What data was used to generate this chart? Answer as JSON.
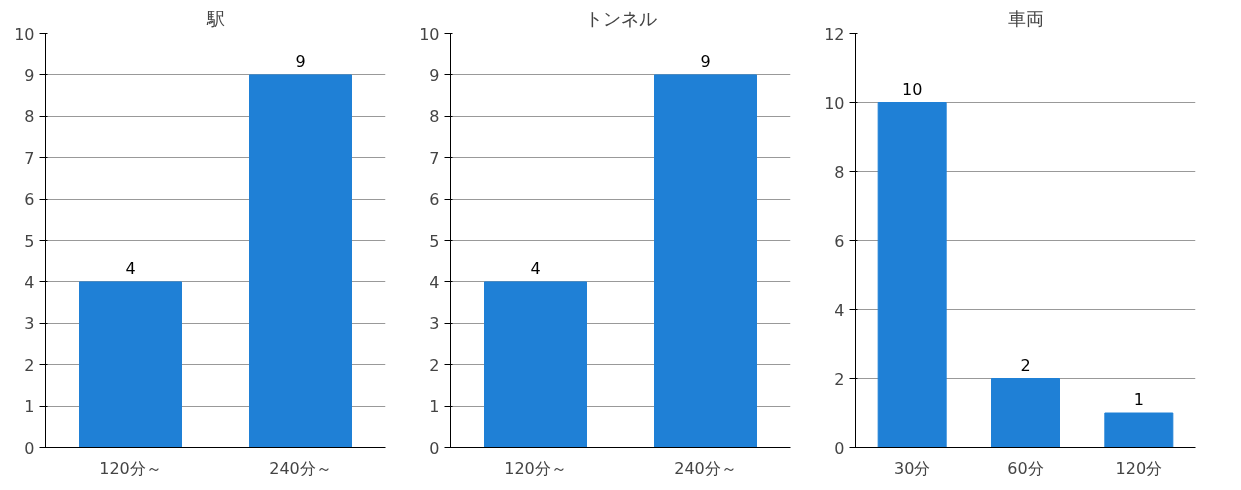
{
  "chart_data": [
    {
      "type": "bar",
      "title": "駅",
      "categories": [
        "120分～",
        "240分～"
      ],
      "values": [
        4,
        9
      ],
      "color": "#1f80d6",
      "ylim": [
        0,
        10
      ],
      "yticks": [
        0,
        1,
        2,
        3,
        4,
        5,
        6,
        7,
        8,
        9,
        10
      ],
      "grid": "y",
      "data_labels": true
    },
    {
      "type": "bar",
      "title": "トンネル",
      "categories": [
        "120分～",
        "240分～"
      ],
      "values": [
        4,
        9
      ],
      "color": "#1f80d6",
      "ylim": [
        0,
        10
      ],
      "yticks": [
        0,
        1,
        2,
        3,
        4,
        5,
        6,
        7,
        8,
        9,
        10
      ],
      "grid": "y",
      "data_labels": true
    },
    {
      "type": "bar",
      "title": "車両",
      "categories": [
        "30分",
        "60分",
        "120分"
      ],
      "values": [
        10,
        2,
        1
      ],
      "color": "#1f80d6",
      "ylim": [
        0,
        12
      ],
      "yticks": [
        0,
        2,
        4,
        6,
        8,
        10,
        12
      ],
      "grid": "y",
      "data_labels": true
    }
  ]
}
